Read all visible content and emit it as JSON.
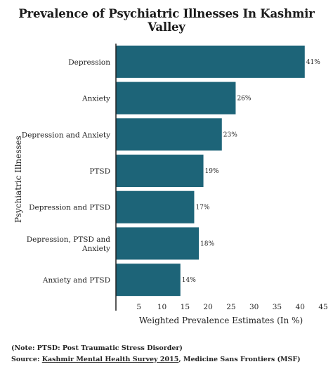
{
  "chart_data": {
    "type": "bar",
    "orientation": "horizontal",
    "title": "Prevalence of Psychiatric Illnesses In Kashmir Valley",
    "xlabel": "Weighted Prevalence Estimates (In %)",
    "ylabel": "Psychiatric Illnesses",
    "xlim": [
      0,
      45
    ],
    "xticks": [
      5,
      10,
      15,
      20,
      25,
      30,
      35,
      40,
      45
    ],
    "grid": false,
    "categories": [
      [
        "Depression"
      ],
      [
        "Anxiety"
      ],
      [
        "Depression and Anxiety"
      ],
      [
        "PTSD"
      ],
      [
        "Depression and PTSD"
      ],
      [
        "Depression, PTSD and",
        "Anxiety"
      ],
      [
        "Anxiety and PTSD"
      ]
    ],
    "values": [
      41,
      26,
      23,
      19,
      17,
      18,
      14
    ],
    "value_labels": [
      "41%",
      "26%",
      "23%",
      "19%",
      "17%",
      "18%",
      "14%"
    ],
    "bar_color": "#1d6478"
  },
  "footer": {
    "note": "(Note: PTSD: Post Traumatic Stress Disorder)",
    "source_prefix": "Source: ",
    "source_link": "Kashmir Mental Health Survey 2015",
    "source_suffix": ", Medicine Sans Frontiers (MSF)"
  }
}
